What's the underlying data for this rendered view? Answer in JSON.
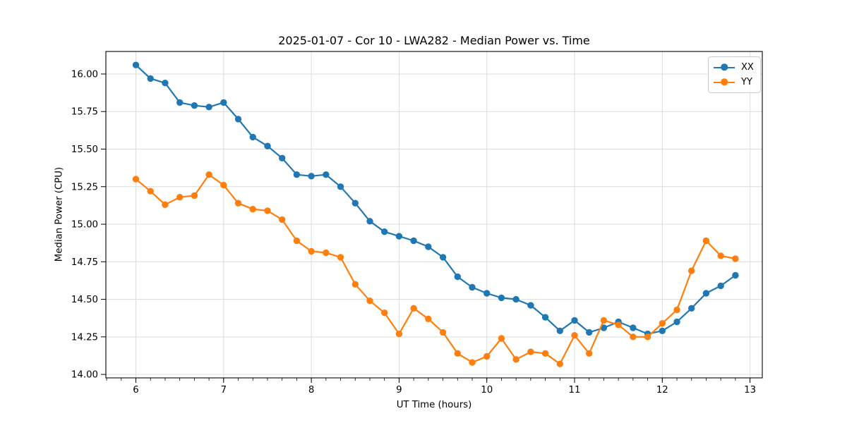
{
  "chart_data": {
    "type": "line",
    "title": "2025-01-07 - Cor 10 - LWA282 - Median Power vs. Time",
    "xlabel": "UT Time (hours)",
    "ylabel": "Median Power (CPU)",
    "xlim": [
      5.658,
      13.14
    ],
    "ylim": [
      13.977,
      16.15
    ],
    "x_ticks": [
      6,
      7,
      8,
      9,
      10,
      11,
      12,
      13
    ],
    "x_tick_labels": [
      "6",
      "7",
      "8",
      "9",
      "10",
      "11",
      "12",
      "13"
    ],
    "y_ticks": [
      14.0,
      14.25,
      14.5,
      14.75,
      15.0,
      15.25,
      15.5,
      15.75,
      16.0
    ],
    "y_tick_labels": [
      "14.00",
      "14.25",
      "14.50",
      "14.75",
      "15.00",
      "15.25",
      "15.50",
      "15.75",
      "16.00"
    ],
    "x_minor_tick_step": 0.166667,
    "grid": true,
    "grid_color": "#dcdcdc",
    "legend_position": "upper right",
    "legend": {
      "items": [
        {
          "label": "XX",
          "color": "#1f77b4"
        },
        {
          "label": "YY",
          "color": "#ff7f0e"
        }
      ]
    },
    "x": [
      6.0,
      6.1667,
      6.3333,
      6.5,
      6.6667,
      6.8333,
      7.0,
      7.1667,
      7.3333,
      7.5,
      7.6667,
      7.8333,
      8.0,
      8.1667,
      8.3333,
      8.5,
      8.6667,
      8.8333,
      9.0,
      9.1667,
      9.3333,
      9.5,
      9.6667,
      9.8333,
      10.0,
      10.1667,
      10.3333,
      10.5,
      10.6667,
      10.8333,
      11.0,
      11.1667,
      11.3333,
      11.5,
      11.6667,
      11.8333,
      12.0,
      12.1667,
      12.3333,
      12.5,
      12.6667,
      12.8333
    ],
    "series": [
      {
        "name": "XX",
        "color": "#1f77b4",
        "values": [
          16.06,
          15.97,
          15.94,
          15.81,
          15.79,
          15.78,
          15.81,
          15.7,
          15.58,
          15.52,
          15.44,
          15.33,
          15.32,
          15.33,
          15.25,
          15.14,
          15.02,
          14.95,
          14.92,
          14.89,
          14.85,
          14.78,
          14.65,
          14.58,
          14.54,
          14.51,
          14.5,
          14.46,
          14.38,
          14.29,
          14.36,
          14.28,
          14.31,
          14.35,
          14.31,
          14.27,
          14.29,
          14.35,
          14.44,
          14.54,
          14.59,
          14.66
        ]
      },
      {
        "name": "YY",
        "color": "#ff7f0e",
        "values": [
          15.3,
          15.22,
          15.13,
          15.18,
          15.19,
          15.33,
          15.26,
          15.14,
          15.1,
          15.09,
          15.03,
          14.89,
          14.82,
          14.81,
          14.78,
          14.6,
          14.49,
          14.41,
          14.27,
          14.44,
          14.37,
          14.28,
          14.14,
          14.08,
          14.12,
          14.24,
          14.1,
          14.15,
          14.14,
          14.07,
          14.26,
          14.14,
          14.36,
          14.33,
          14.25,
          14.25,
          14.34,
          14.43,
          14.69,
          14.89,
          14.79,
          14.77
        ]
      }
    ]
  }
}
